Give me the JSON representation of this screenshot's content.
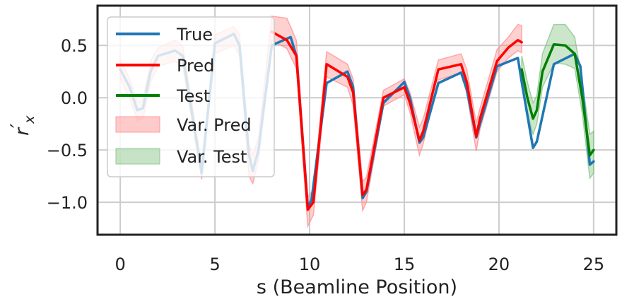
{
  "chart_data": {
    "type": "line",
    "title": "",
    "xlabel": "s (Beamline Position)",
    "ylabel": "r′x",
    "ylabel_main": "r",
    "ylabel_prime": "′",
    "ylabel_sub": "x",
    "xlim": [
      -1.2,
      26.2
    ],
    "ylim": [
      -1.31,
      0.88
    ],
    "xticks": [
      0,
      5,
      10,
      15,
      20,
      25
    ],
    "xtick_labels": [
      "0",
      "5",
      "10",
      "15",
      "20",
      "25"
    ],
    "yticks": [
      0.5,
      0.0,
      -0.5,
      -1.0
    ],
    "ytick_labels": [
      "0.5",
      "0.0",
      "−0.5",
      "−1.0"
    ],
    "grid": true,
    "legend_position": "top-left",
    "colors": {
      "true": "#1f77b4",
      "pred": "#ff0000",
      "test": "#008000",
      "var_pred": "#ff8a8a",
      "var_test": "#80c080",
      "grid": "#cccccc",
      "frame": "#222222"
    },
    "series": [
      {
        "name": "True",
        "kind": "line",
        "x": [
          0.0,
          0.5,
          0.9,
          1.2,
          1.6,
          2.0,
          2.9,
          3.3,
          4.3,
          5.0,
          6.0,
          6.3,
          6.8,
          7.0,
          7.3,
          8.0,
          9.0,
          9.3,
          9.9,
          10.1,
          10.9,
          12.0,
          12.3,
          12.8,
          13.0,
          13.9,
          15.0,
          15.3,
          15.8,
          16.0,
          16.8,
          18.0,
          18.3,
          18.8,
          19.0,
          19.9,
          21.0,
          21.2,
          21.8,
          22.0,
          22.9,
          24.0,
          24.3,
          24.8,
          25.0
        ],
        "y": [
          0.27,
          0.1,
          -0.12,
          -0.1,
          0.25,
          0.4,
          0.45,
          0.4,
          -0.72,
          0.52,
          0.61,
          0.5,
          -0.55,
          -0.7,
          -0.5,
          0.5,
          0.58,
          0.4,
          -1.04,
          -0.98,
          0.14,
          0.25,
          0.1,
          -0.96,
          -0.9,
          -0.05,
          0.15,
          0.0,
          -0.43,
          -0.38,
          0.14,
          0.24,
          0.08,
          -0.38,
          -0.25,
          0.3,
          0.38,
          0.15,
          -0.48,
          -0.42,
          0.32,
          0.42,
          0.3,
          -0.64,
          -0.61
        ]
      },
      {
        "name": "Pred",
        "kind": "line",
        "x": [
          8.0,
          8.8,
          9.3,
          9.9,
          10.2,
          10.9,
          12.0,
          12.3,
          12.8,
          13.0,
          13.9,
          15.0,
          15.3,
          15.8,
          16.0,
          16.8,
          18.0,
          18.3,
          18.8,
          19.0,
          19.9,
          20.5,
          21.0,
          21.2
        ],
        "y": [
          0.63,
          0.55,
          0.4,
          -1.07,
          -1.0,
          0.32,
          0.2,
          0.05,
          -0.93,
          -0.88,
          0.0,
          0.1,
          -0.05,
          -0.41,
          -0.32,
          0.27,
          0.32,
          0.15,
          -0.37,
          -0.2,
          0.35,
          0.48,
          0.55,
          0.53
        ]
      },
      {
        "name": "Test",
        "kind": "line",
        "x": [
          21.2,
          21.5,
          21.8,
          22.0,
          22.3,
          22.9,
          23.5,
          24.0,
          24.4,
          24.8,
          25.0
        ],
        "y": [
          0.27,
          0.0,
          -0.2,
          -0.12,
          0.25,
          0.51,
          0.5,
          0.42,
          0.0,
          -0.55,
          -0.5
        ]
      },
      {
        "name": "Var. Pred",
        "kind": "band",
        "x": [
          0.0,
          0.5,
          0.9,
          1.2,
          1.6,
          2.0,
          2.9,
          3.3,
          4.3,
          5.0,
          6.0,
          6.3,
          6.8,
          7.0,
          7.3,
          8.0,
          8.8,
          9.3,
          9.9,
          10.2,
          10.9,
          12.0,
          12.3,
          12.8,
          13.0,
          13.9,
          15.0,
          15.3,
          15.8,
          16.0,
          16.8,
          18.0,
          18.3,
          18.8,
          19.0,
          19.9,
          20.5,
          21.0,
          21.2
        ],
        "lower": [
          0.18,
          0.0,
          -0.22,
          -0.2,
          0.15,
          0.3,
          0.35,
          0.3,
          -0.78,
          0.42,
          0.5,
          0.4,
          -0.75,
          -0.82,
          -0.6,
          0.55,
          0.47,
          0.28,
          -1.23,
          -1.12,
          0.2,
          0.1,
          -0.07,
          -1.08,
          -1.0,
          -0.08,
          0.03,
          -0.14,
          -0.55,
          -0.44,
          0.17,
          0.24,
          0.04,
          -0.51,
          -0.3,
          0.25,
          0.38,
          0.45,
          0.43
        ],
        "upper": [
          0.36,
          0.18,
          -0.04,
          -0.02,
          0.35,
          0.48,
          0.55,
          0.5,
          -0.63,
          0.6,
          0.68,
          0.6,
          -0.45,
          -0.55,
          -0.38,
          0.78,
          0.76,
          0.55,
          -0.95,
          -0.88,
          0.44,
          0.32,
          0.18,
          -0.8,
          -0.76,
          0.07,
          0.18,
          0.05,
          -0.28,
          -0.2,
          0.36,
          0.42,
          0.27,
          -0.24,
          -0.1,
          0.46,
          0.58,
          0.7,
          0.69
        ]
      },
      {
        "name": "Var. Test",
        "kind": "band",
        "x": [
          21.2,
          21.5,
          21.8,
          22.0,
          22.3,
          22.9,
          23.5,
          24.0,
          24.4,
          24.8,
          25.0
        ],
        "lower": [
          0.15,
          -0.15,
          -0.35,
          -0.25,
          0.1,
          0.33,
          0.32,
          0.28,
          -0.15,
          -0.77,
          -0.72
        ],
        "upper": [
          0.4,
          0.15,
          -0.05,
          0.02,
          0.42,
          0.7,
          0.7,
          0.58,
          0.15,
          -0.35,
          -0.32
        ]
      }
    ]
  }
}
